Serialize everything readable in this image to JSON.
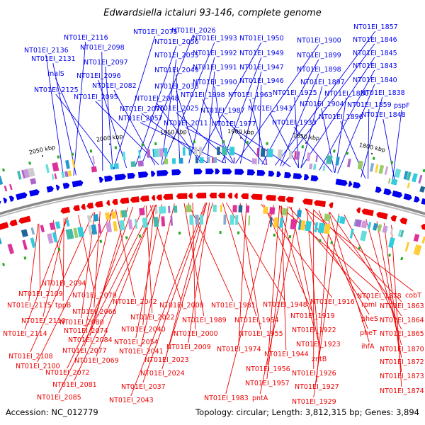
{
  "title": "Edwardsiella ictaluri 93-146, complete genome",
  "accession": "Accession: NC_012779",
  "summary": "Topology: circular; Length: 3,812,315 bp; Genes: 3,894",
  "colors": {
    "forward": "#0000ee",
    "reverse": "#ee0000",
    "backbone": "#888888",
    "rna": "#22aa22"
  },
  "scale_ticks": [
    "2050 kbp",
    "2000 kbp",
    "1950 kbp",
    "1900 kbp",
    "1850 kbp",
    "1800 kbp"
  ],
  "forward_labels": [
    "NT01EI_2075",
    "NT01EI_2026",
    "NT01EI_2116",
    "NT01EI_2056",
    "NT01EI_1993",
    "NT01EI_1950",
    "NT01EI_1900",
    "NT01EI_1857",
    "NT01EI_2136",
    "NT01EI_2098",
    "NT01EI_1846",
    "NT01EI_2131",
    "NT01EI_2097",
    "NT01EI_2055",
    "NT01EI_1992",
    "NT01EI_1949",
    "NT01EI_1899",
    "NT01EI_1845",
    "malS",
    "NT01EI_2096",
    "NT01EI_2049",
    "NT01EI_1991",
    "NT01EI_1947",
    "NT01EI_1898",
    "NT01EI_1843",
    "NT01EI_2125",
    "NT01EI_2082",
    "NT01EI_2038",
    "NT01EI_1990",
    "NT01EI_1946",
    "NT01EI_1897",
    "NT01EI_1840",
    "NT01EI_2095",
    "NT01EI_2048",
    "NT01EI_1998",
    "NT01EI_1963",
    "NT01EI_1925",
    "NT01EI_1880",
    "NT01EI_1838",
    "NT01EI_2070",
    "NT01EI_2025",
    "NT01EI_1987",
    "NT01EI_1943",
    "NT01EI_1904",
    "NT01EI_1859",
    "pspF",
    "NT01EI_2057",
    "NT01EI_2011",
    "NT01EI_1977",
    "NT01EI_1933",
    "NT01EI_1896",
    "NT01EI_1848"
  ],
  "reverse_labels": [
    "NT01EI_2094",
    "NT01EI_2109",
    "NT01EI_2079",
    "NT01EI_1878",
    "cobT",
    "NT01EI_2115",
    "tppB",
    "NT01EI_2042",
    "NT01EI_2008",
    "NT01EI_1981",
    "NT01EI_1948",
    "NT01EI_1916",
    "rpmI",
    "NT01EI_1863",
    "NT01EI_2066",
    "NT01EI_2110",
    "NT01EI_2080",
    "NT01EI_2022",
    "NT01EI_1989",
    "NT01EI_1954",
    "NT01EI_1919",
    "pheS",
    "NT01EI_1864",
    "NT01EI_2114",
    "NT01EI_2074",
    "NT01EI_2040",
    "NT01EI_2000",
    "NT01EI_1955",
    "NT01EI_1922",
    "pheT",
    "NT01EI_1865",
    "NT01EI_2084",
    "NT01EI_2054",
    "NT01EI_1923",
    "ihfA",
    "NT01EI_2108",
    "NT01EI_2077",
    "NT01EI_2041",
    "NT01EI_2009",
    "NT01EI_1974",
    "NT01EI_1944",
    "zntB",
    "NT01EI_1870",
    "NT01EI_2100",
    "NT01EI_2069",
    "NT01EI_2023",
    "NT01EI_1956",
    "NT01EI_1926",
    "NT01EI_1872",
    "NT01EI_2072",
    "NT01EI_2024",
    "NT01EI_1957",
    "NT01EI_1873",
    "NT01EI_2081",
    "NT01EI_2037",
    "NT01EI_1927",
    "NT01EI_1874",
    "NT01EI_2085",
    "NT01EI_2043",
    "NT01EI_1983",
    "pntA",
    "NT01EI_1929"
  ]
}
